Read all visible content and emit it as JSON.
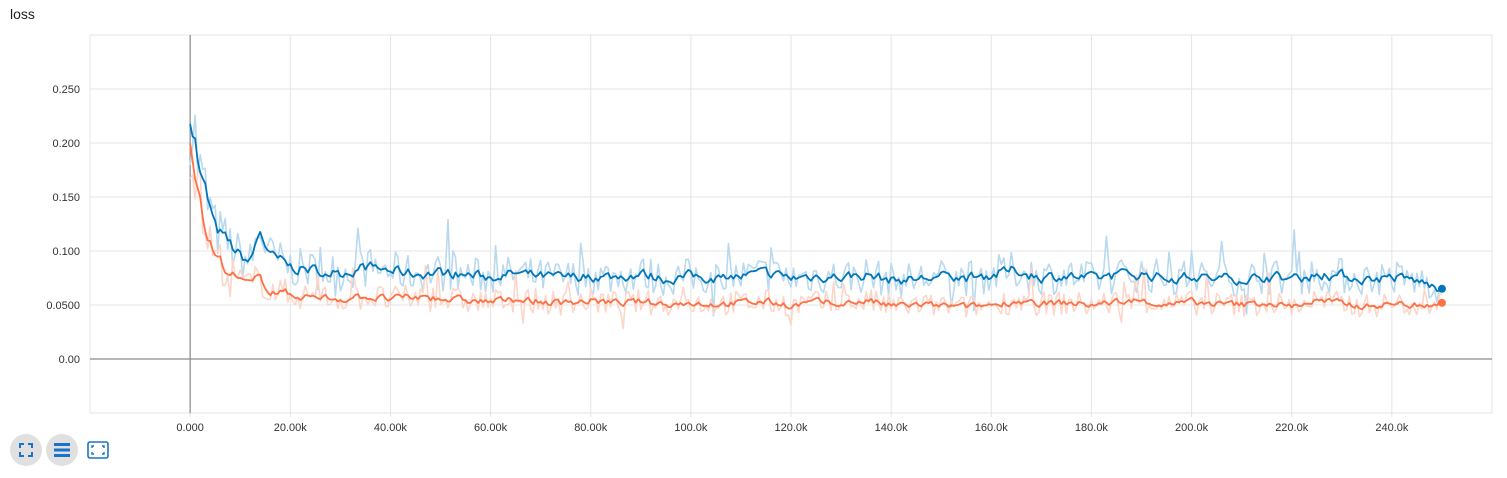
{
  "title": "loss",
  "colors": {
    "series_blue": "#0077bb",
    "series_blue_raw": "#b9d9ee",
    "series_orange": "#ff7043",
    "series_orange_raw": "#fbd6c9",
    "grid": "#e4e4e4",
    "axis": "#8a8a8a",
    "icon": "#1a73c8"
  },
  "toolbar": {
    "icons": [
      "fullscreen-icon",
      "list-icon",
      "fit-domain-icon"
    ]
  },
  "chart_data": {
    "type": "line",
    "title": "loss",
    "xlabel": "",
    "ylabel": "",
    "xlim": [
      -20000,
      260000
    ],
    "ylim": [
      -0.05,
      0.3
    ],
    "grid": true,
    "x_tick_labels": [
      "0.000",
      "20.00k",
      "40.00k",
      "60.00k",
      "80.00k",
      "100.0k",
      "120.0k",
      "140.0k",
      "160.0k",
      "180.0k",
      "200.0k",
      "220.0k",
      "240.0k"
    ],
    "x_ticks": [
      0,
      20000,
      40000,
      60000,
      80000,
      100000,
      120000,
      140000,
      160000,
      180000,
      200000,
      220000,
      240000
    ],
    "y_tick_labels": [
      "0.00",
      "0.0500",
      "0.100",
      "0.150",
      "0.200",
      "0.250"
    ],
    "y_ticks": [
      0,
      0.05,
      0.1,
      0.15,
      0.2,
      0.25
    ],
    "series": [
      {
        "color": "#0077bb",
        "x": [
          0,
          1000,
          2000,
          3000,
          5000,
          8000,
          10000,
          12000,
          14000,
          16000,
          20000,
          25000,
          30000,
          35000,
          40000,
          45000,
          50000,
          55000,
          60000,
          65000,
          70000,
          75000,
          80000,
          85000,
          90000,
          95000,
          100000,
          105000,
          110000,
          115000,
          120000,
          125000,
          130000,
          135000,
          140000,
          145000,
          150000,
          155000,
          160000,
          165000,
          170000,
          175000,
          180000,
          185000,
          190000,
          195000,
          200000,
          205000,
          210000,
          215000,
          220000,
          225000,
          230000,
          235000,
          240000,
          245000,
          250000
        ],
        "y": [
          0.23,
          0.205,
          0.17,
          0.155,
          0.12,
          0.105,
          0.095,
          0.09,
          0.118,
          0.095,
          0.085,
          0.082,
          0.08,
          0.085,
          0.082,
          0.079,
          0.08,
          0.078,
          0.076,
          0.079,
          0.076,
          0.075,
          0.077,
          0.076,
          0.079,
          0.074,
          0.077,
          0.075,
          0.076,
          0.079,
          0.075,
          0.077,
          0.076,
          0.078,
          0.073,
          0.074,
          0.076,
          0.075,
          0.078,
          0.082,
          0.076,
          0.077,
          0.074,
          0.077,
          0.079,
          0.075,
          0.076,
          0.074,
          0.075,
          0.077,
          0.074,
          0.078,
          0.077,
          0.074,
          0.076,
          0.072,
          0.065
        ]
      },
      {
        "color": "#ff7043",
        "x": [
          0,
          1000,
          2000,
          3000,
          5000,
          8000,
          10000,
          12000,
          14000,
          16000,
          20000,
          25000,
          30000,
          35000,
          40000,
          45000,
          50000,
          55000,
          60000,
          65000,
          70000,
          75000,
          80000,
          85000,
          90000,
          95000,
          100000,
          105000,
          110000,
          115000,
          120000,
          125000,
          130000,
          135000,
          140000,
          145000,
          150000,
          155000,
          160000,
          165000,
          170000,
          175000,
          180000,
          185000,
          190000,
          195000,
          200000,
          205000,
          210000,
          215000,
          220000,
          225000,
          230000,
          235000,
          240000,
          245000,
          250000
        ],
        "y": [
          0.21,
          0.18,
          0.145,
          0.12,
          0.095,
          0.08,
          0.072,
          0.068,
          0.075,
          0.064,
          0.06,
          0.057,
          0.056,
          0.058,
          0.055,
          0.057,
          0.056,
          0.054,
          0.053,
          0.055,
          0.053,
          0.052,
          0.054,
          0.052,
          0.053,
          0.051,
          0.052,
          0.051,
          0.052,
          0.053,
          0.05,
          0.052,
          0.051,
          0.054,
          0.049,
          0.05,
          0.049,
          0.048,
          0.05,
          0.054,
          0.051,
          0.052,
          0.05,
          0.053,
          0.054,
          0.05,
          0.052,
          0.051,
          0.05,
          0.052,
          0.049,
          0.054,
          0.051,
          0.049,
          0.051,
          0.05,
          0.052
        ]
      }
    ]
  }
}
